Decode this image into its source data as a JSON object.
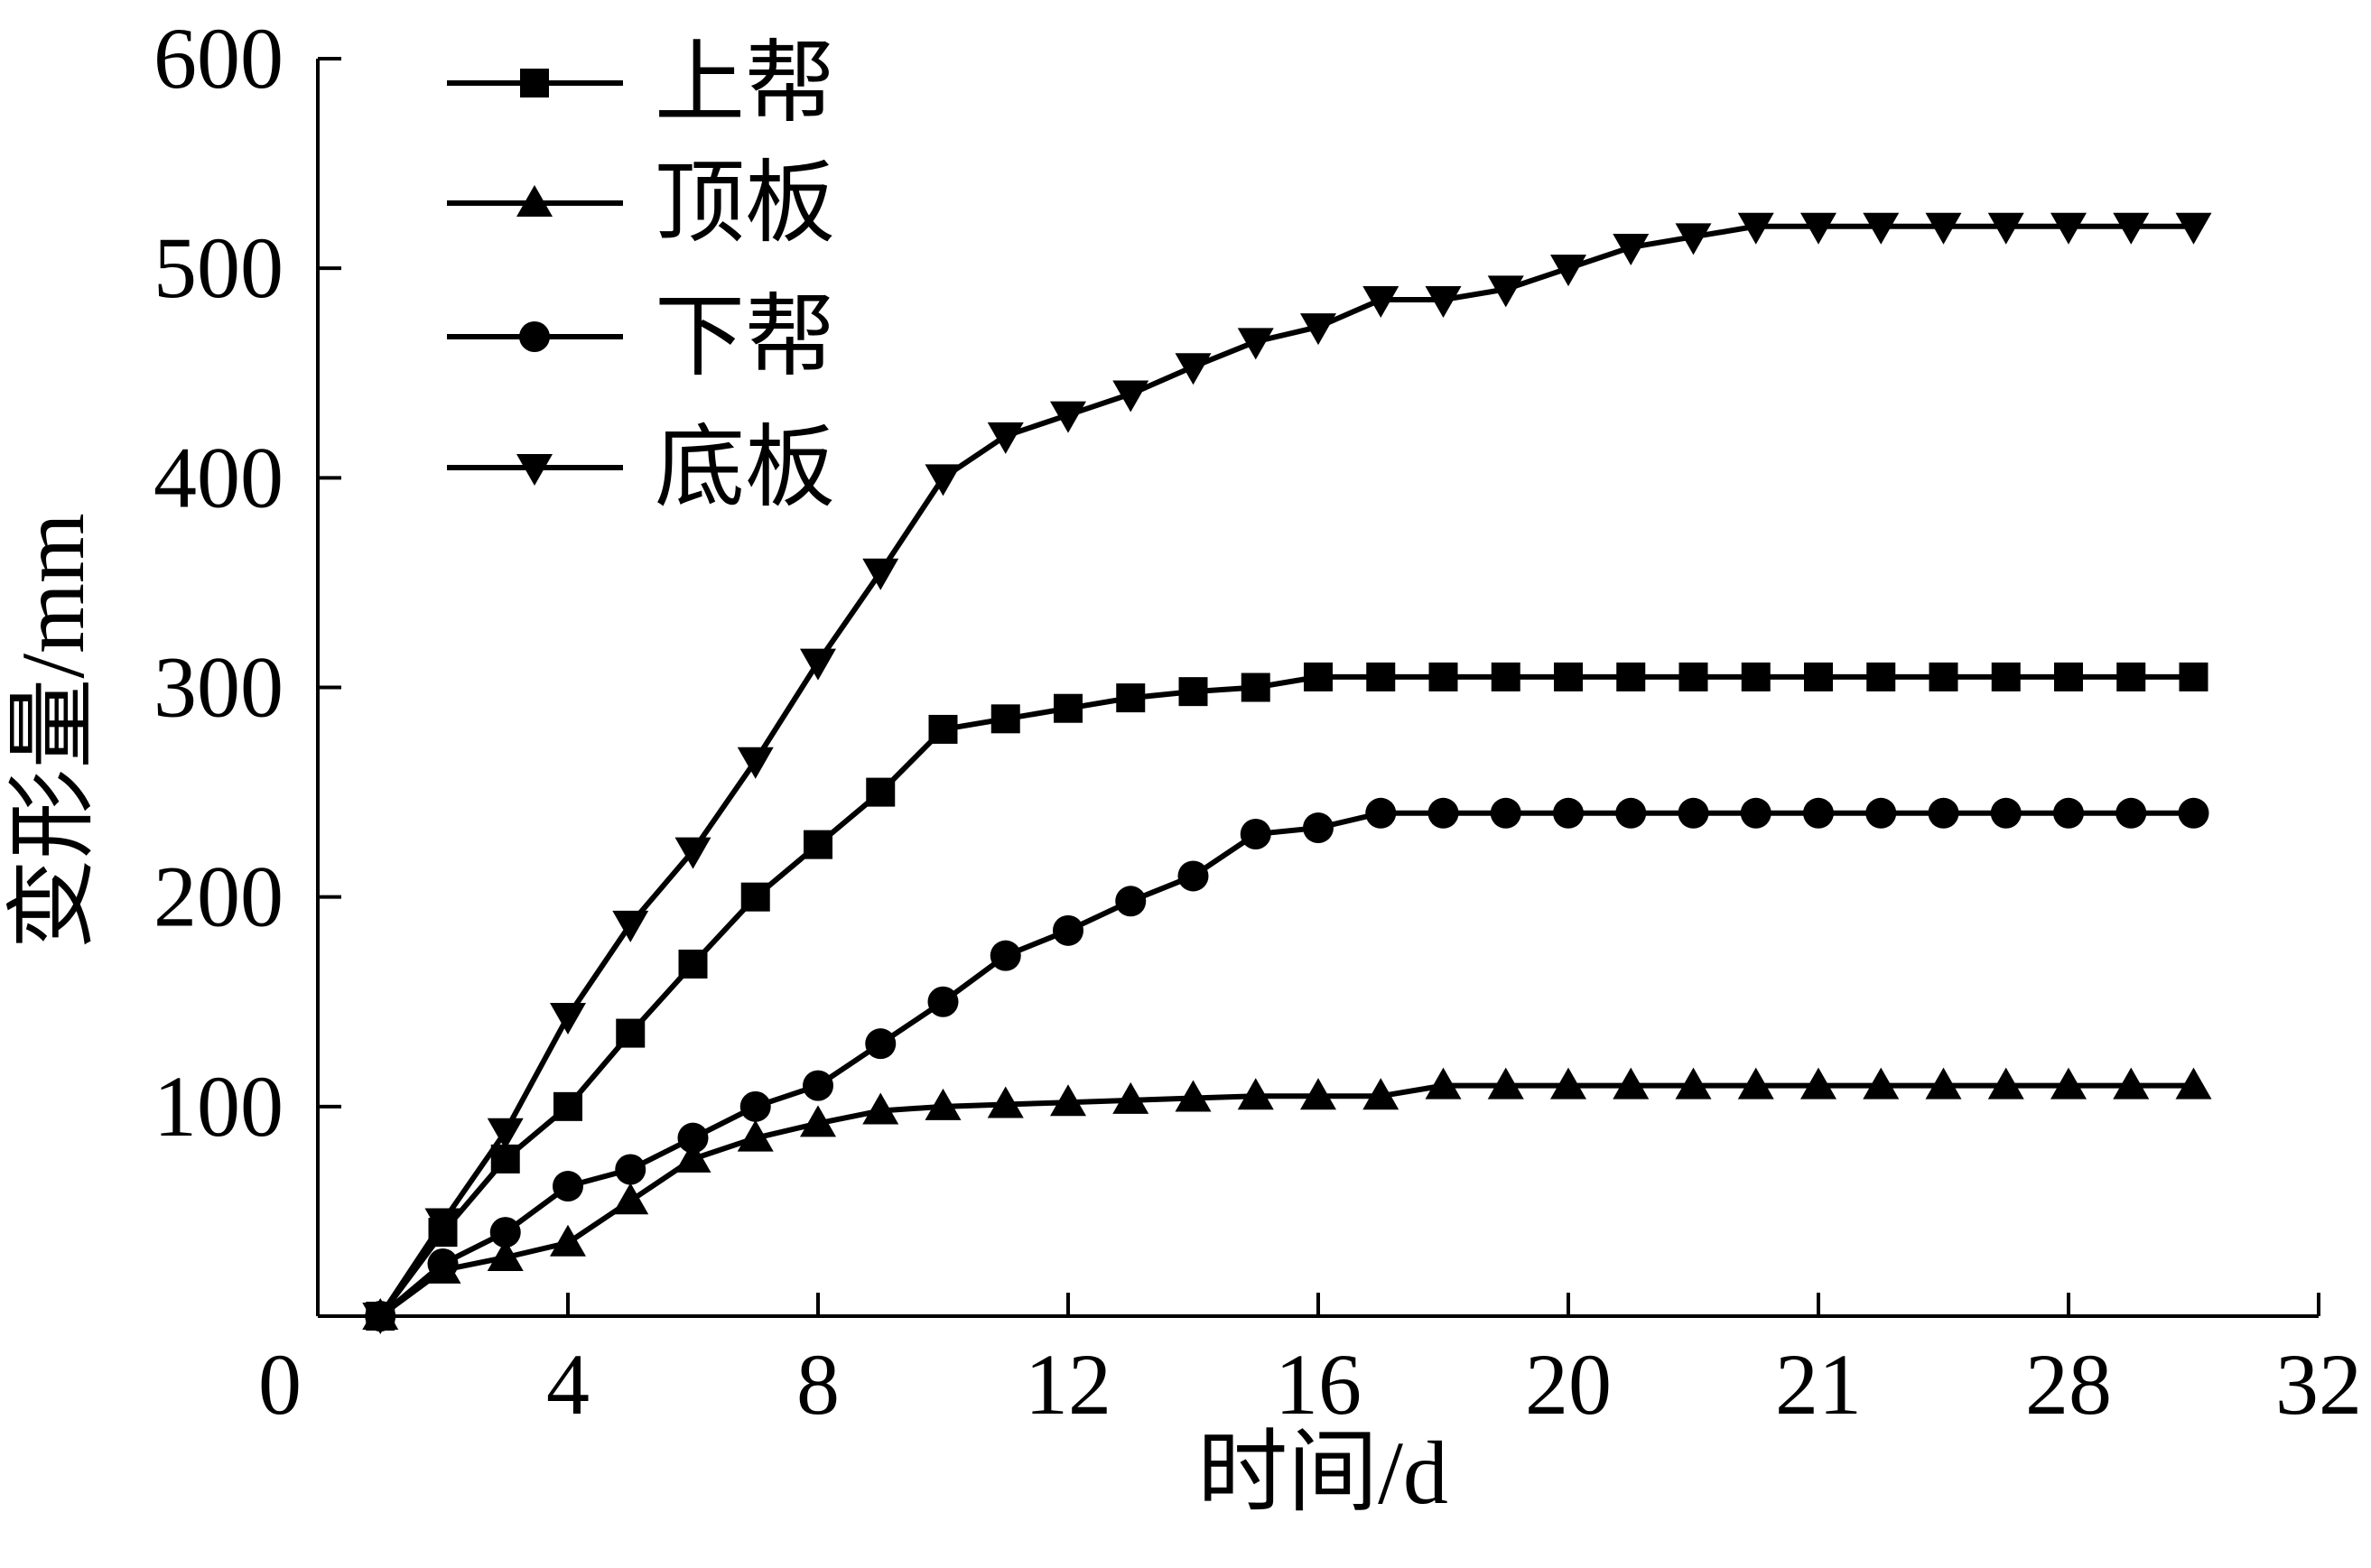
{
  "chart_data": {
    "type": "line",
    "xlabel": "时间/d",
    "ylabel": "变形量/mm",
    "x_tick_labels": [
      "0",
      "4",
      "8",
      "12",
      "16",
      "20",
      "21",
      "28",
      "32"
    ],
    "y_tick_labels": [
      "600",
      "500",
      "400",
      "300",
      "200",
      "100"
    ],
    "xlim": [
      0,
      32
    ],
    "ylim": [
      0,
      600
    ],
    "grid": false,
    "legend_position": "top-left",
    "x": [
      1,
      2,
      3,
      4,
      5,
      6,
      7,
      8,
      9,
      10,
      11,
      12,
      13,
      14,
      15,
      16,
      17,
      18,
      19,
      20,
      21,
      22,
      23,
      24,
      25,
      26,
      27,
      28,
      29,
      30
    ],
    "series": [
      {
        "name": "上帮",
        "marker": "square",
        "values": [
          0,
          40,
          75,
          100,
          135,
          168,
          200,
          225,
          250,
          280,
          285,
          290,
          295,
          298,
          300,
          305,
          305,
          305,
          305,
          305,
          305,
          305,
          305,
          305,
          305,
          305,
          305,
          305,
          305,
          305
        ]
      },
      {
        "name": "顶板",
        "marker": "triangle-up",
        "values": [
          0,
          22,
          28,
          35,
          55,
          75,
          85,
          92,
          98,
          100,
          101,
          102,
          103,
          104,
          105,
          105,
          105,
          110,
          110,
          110,
          110,
          110,
          110,
          110,
          110,
          110,
          110,
          110,
          110,
          110
        ]
      },
      {
        "name": "下帮",
        "marker": "circle",
        "values": [
          0,
          25,
          40,
          62,
          70,
          85,
          100,
          110,
          130,
          150,
          172,
          184,
          198,
          210,
          230,
          233,
          240,
          240,
          240,
          240,
          240,
          240,
          240,
          240,
          240,
          240,
          240,
          240,
          240,
          240
        ]
      },
      {
        "name": "底板",
        "marker": "triangle-down",
        "values": [
          0,
          45,
          88,
          143,
          187,
          222,
          265,
          312,
          355,
          400,
          420,
          430,
          440,
          453,
          465,
          472,
          485,
          485,
          490,
          500,
          510,
          515,
          520,
          520,
          520,
          520,
          520,
          520,
          520,
          520
        ]
      }
    ]
  }
}
